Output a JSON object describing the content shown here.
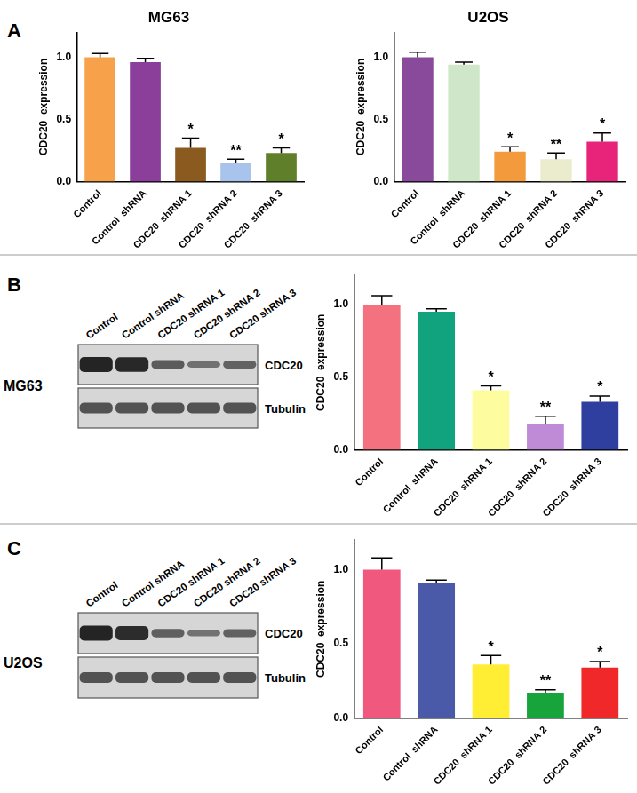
{
  "panel_labels": [
    "A",
    "B",
    "C"
  ],
  "chart_data": [
    {
      "type": "bar",
      "title": "MG63",
      "y_label": "CDC20  expression",
      "categories": [
        "Control",
        "Control  shRNA",
        "CDC20  shRNA 1",
        "CDC20  shRNA 2",
        "CDC20  shRNA 3"
      ],
      "values": [
        1.0,
        0.96,
        0.27,
        0.15,
        0.23
      ],
      "errors": [
        0.03,
        0.03,
        0.08,
        0.03,
        0.04
      ],
      "colors": [
        "#f7a24b",
        "#8b3f9b",
        "#8b5a1e",
        "#a9c4ec",
        "#5f7f2a"
      ],
      "annotations": [
        null,
        null,
        "*",
        "**",
        "*"
      ],
      "ylim": [
        0,
        1.2
      ],
      "yticks": [
        {
          "value": 0,
          "label": "0.0"
        },
        {
          "value": 0.5,
          "label": "0.5"
        },
        {
          "value": 1,
          "label": "1.0"
        }
      ],
      "grid": false
    },
    {
      "type": "bar",
      "title": "U2OS",
      "y_label": "CDC20  expression",
      "categories": [
        "Control",
        "Control  shRNA",
        "CDC20  shRNA 1",
        "CDC20  shRNA 2",
        "CDC20  shRNA 3"
      ],
      "values": [
        1.0,
        0.94,
        0.24,
        0.18,
        0.32
      ],
      "errors": [
        0.04,
        0.02,
        0.04,
        0.05,
        0.07
      ],
      "colors": [
        "#8a4a9c",
        "#cfe6c8",
        "#f39a3c",
        "#eaeccd",
        "#e8237a"
      ],
      "annotations": [
        null,
        null,
        "*",
        "**",
        "*"
      ],
      "ylim": [
        0,
        1.2
      ],
      "yticks": [
        {
          "value": 0,
          "label": "0.0"
        },
        {
          "value": 0.5,
          "label": "0.5"
        },
        {
          "value": 1,
          "label": "1.0"
        }
      ],
      "grid": false
    },
    {
      "type": "bar",
      "y_label": "CDC20  expression",
      "categories": [
        "Control",
        "Control  shRNA",
        "CDC20  shRNA 1",
        "CDC20  shRNA 2",
        "CDC20  shRNA 3"
      ],
      "values": [
        1.0,
        0.95,
        0.41,
        0.18,
        0.33
      ],
      "errors": [
        0.06,
        0.02,
        0.03,
        0.05,
        0.04
      ],
      "colors": [
        "#f4727f",
        "#11a37d",
        "#fdfda0",
        "#c08bd6",
        "#2f3fa0"
      ],
      "annotations": [
        null,
        null,
        "*",
        "**",
        "*"
      ],
      "ylim": [
        0,
        1.2
      ],
      "yticks": [
        {
          "value": 0,
          "label": "0.0"
        },
        {
          "value": 0.5,
          "label": "0.5"
        },
        {
          "value": 1,
          "label": "1.0"
        }
      ],
      "grid": false
    },
    {
      "type": "bar",
      "y_label": "CDC20  expression",
      "categories": [
        "Control",
        "Control  shRNA",
        "CDC20  shRNA 1",
        "CDC20  shRNA 2",
        "CDC20  shRNA 3"
      ],
      "values": [
        1.0,
        0.91,
        0.36,
        0.17,
        0.34
      ],
      "errors": [
        0.08,
        0.02,
        0.06,
        0.02,
        0.04
      ],
      "colors": [
        "#f0587d",
        "#4b5aa8",
        "#ffee33",
        "#16a43b",
        "#f0282a"
      ],
      "annotations": [
        null,
        null,
        "*",
        "**",
        "*"
      ],
      "ylim": [
        0,
        1.2
      ],
      "yticks": [
        {
          "value": 0,
          "label": "0.0"
        },
        {
          "value": 0.5,
          "label": "0.5"
        },
        {
          "value": 1,
          "label": "1.0"
        }
      ],
      "grid": false
    }
  ],
  "blots": [
    {
      "cell_line": "MG63",
      "lanes": [
        "Control",
        "Control  shRNA",
        "CDC20  shRNA 1",
        "CDC20  shRNA 2",
        "CDC20  shRNA 3"
      ],
      "bands": [
        "CDC20",
        "Tubulin"
      ]
    },
    {
      "cell_line": "U2OS",
      "lanes": [
        "Control",
        "Control  shRNA",
        "CDC20  shRNA 1",
        "CDC20  shRNA 2",
        "CDC20  shRNA 3"
      ],
      "bands": [
        "CDC20",
        "Tubulin"
      ]
    }
  ]
}
